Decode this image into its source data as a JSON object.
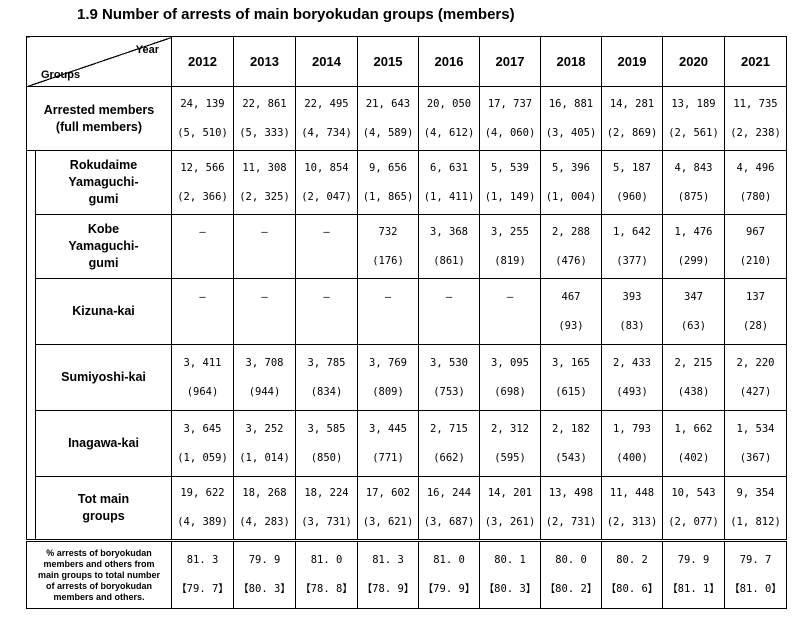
{
  "title": "1.9 Number of arrests of main boryokudan groups (members)",
  "header": {
    "year_label": "Year",
    "groups_label": "Groups",
    "years": [
      "2012",
      "2013",
      "2014",
      "2015",
      "2016",
      "2017",
      "2018",
      "2019",
      "2020",
      "2021"
    ]
  },
  "rows": [
    {
      "label": "Arrested members\n(full members)",
      "values": [
        "24, 139",
        "22, 861",
        "22, 495",
        "21, 643",
        "20, 050",
        "17, 737",
        "16, 881",
        "14, 281",
        "13, 189",
        "11, 735"
      ],
      "sub": [
        "(5, 510)",
        "(5, 333)",
        "(4, 734)",
        "(4, 589)",
        "(4, 612)",
        "(4, 060)",
        "(3, 405)",
        "(2, 869)",
        "(2, 561)",
        "(2, 238)"
      ]
    },
    {
      "label": "Rokudaime\nYamaguchi-\ngumi",
      "values": [
        "12, 566",
        "11, 308",
        "10, 854",
        "9, 656",
        "6, 631",
        "5, 539",
        "5, 396",
        "5, 187",
        "4, 843",
        "4, 496"
      ],
      "sub": [
        "(2, 366)",
        "(2, 325)",
        "(2, 047)",
        "(1, 865)",
        "(1, 411)",
        "(1, 149)",
        "(1, 004)",
        "(960)",
        "(875)",
        "(780)"
      ]
    },
    {
      "label": "Kobe\nYamaguchi-\ngumi",
      "values": [
        "—",
        "—",
        "—",
        "732",
        "3, 368",
        "3, 255",
        "2, 288",
        "1, 642",
        "1, 476",
        "967"
      ],
      "sub": [
        "",
        "",
        "",
        "(176)",
        "(861)",
        "(819)",
        "(476)",
        "(377)",
        "(299)",
        "(210)"
      ]
    },
    {
      "label": "Kizuna-kai",
      "values": [
        "—",
        "—",
        "—",
        "—",
        "—",
        "—",
        "467",
        "393",
        "347",
        "137"
      ],
      "sub": [
        "",
        "",
        "",
        "",
        "",
        "",
        "(93)",
        "(83)",
        "(63)",
        "(28)"
      ]
    },
    {
      "label": "Sumiyoshi-kai",
      "values": [
        "3, 411",
        "3, 708",
        "3, 785",
        "3, 769",
        "3, 530",
        "3, 095",
        "3, 165",
        "2, 433",
        "2, 215",
        "2, 220"
      ],
      "sub": [
        "(964)",
        "(944)",
        "(834)",
        "(809)",
        "(753)",
        "(698)",
        "(615)",
        "(493)",
        "(438)",
        "(427)"
      ]
    },
    {
      "label": "Inagawa-kai",
      "values": [
        "3, 645",
        "3, 252",
        "3, 585",
        "3, 445",
        "2, 715",
        "2, 312",
        "2, 182",
        "1, 793",
        "1, 662",
        "1, 534"
      ],
      "sub": [
        "(1, 059)",
        "(1, 014)",
        "(850)",
        "(771)",
        "(662)",
        "(595)",
        "(543)",
        "(400)",
        "(402)",
        "(367)"
      ]
    },
    {
      "label": "Tot main\ngroups",
      "values": [
        "19, 622",
        "18, 268",
        "18, 224",
        "17, 602",
        "16, 244",
        "14, 201",
        "13, 498",
        "11, 448",
        "10, 543",
        "9, 354"
      ],
      "sub": [
        "(4, 389)",
        "(4, 283)",
        "(3, 731)",
        "(3, 621)",
        "(3, 687)",
        "(3, 261)",
        "(2, 731)",
        "(2, 313)",
        "(2, 077)",
        "(1, 812)"
      ]
    }
  ],
  "pct_row": {
    "label": "% arrests of boryokudan\nmembers and others from\nmain groups to total number\nof arrests of boryokudan\nmembers and others.",
    "values": [
      "81. 3",
      "79. 9",
      "81. 0",
      "81. 3",
      "81. 0",
      "80. 1",
      "80. 0",
      "80. 2",
      "79. 9",
      "79. 7"
    ],
    "sub": [
      "【79. 7】",
      "【80. 3】",
      "【78. 8】",
      "【78. 9】",
      "【79. 9】",
      "【80. 3】",
      "【80. 2】",
      "【80. 6】",
      "【81. 1】",
      "【81. 0】"
    ]
  }
}
